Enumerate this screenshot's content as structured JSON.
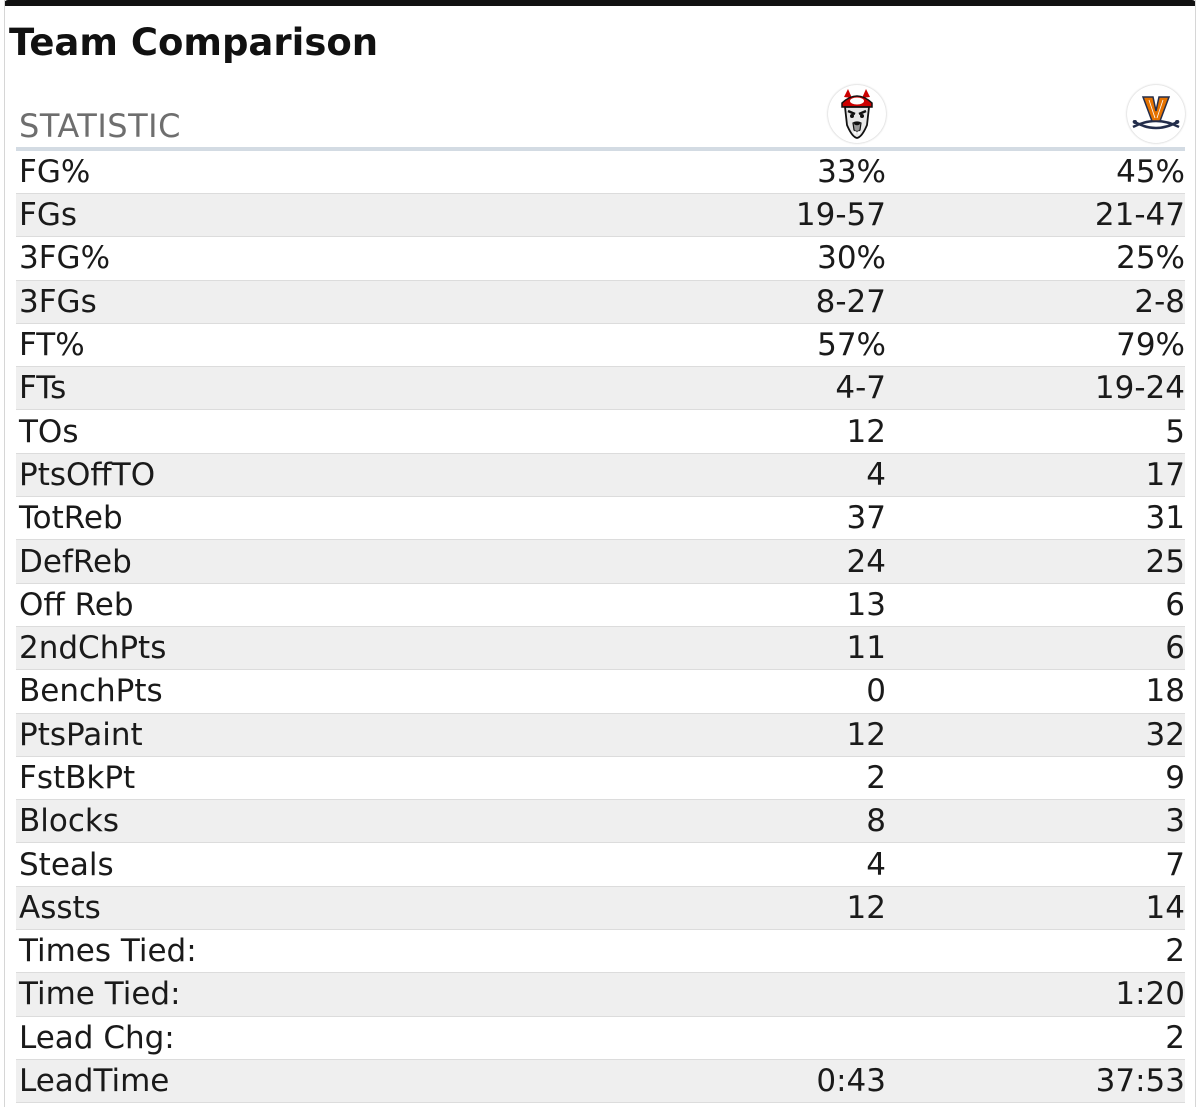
{
  "title": "Team Comparison",
  "header": {
    "statistic_label": "STATISTIC",
    "team1_logo": "nc-state-wolf-logo",
    "team2_logo": "virginia-cavaliers-logo"
  },
  "colors": {
    "team1_red": "#cc0000",
    "team2_orange": "#e57200",
    "team2_navy": "#232d4b"
  },
  "rows": [
    {
      "stat": "FG%",
      "team1": "33%",
      "team2": "45%"
    },
    {
      "stat": "FGs",
      "team1": "19-57",
      "team2": "21-47"
    },
    {
      "stat": "3FG%",
      "team1": "30%",
      "team2": "25%"
    },
    {
      "stat": "3FGs",
      "team1": "8-27",
      "team2": "2-8"
    },
    {
      "stat": "FT%",
      "team1": "57%",
      "team2": "79%"
    },
    {
      "stat": "FTs",
      "team1": "4-7",
      "team2": "19-24"
    },
    {
      "stat": "TOs",
      "team1": "12",
      "team2": "5"
    },
    {
      "stat": "PtsOffTO",
      "team1": "4",
      "team2": "17"
    },
    {
      "stat": "TotReb",
      "team1": "37",
      "team2": "31"
    },
    {
      "stat": "DefReb",
      "team1": "24",
      "team2": "25"
    },
    {
      "stat": "Off Reb",
      "team1": "13",
      "team2": "6"
    },
    {
      "stat": "2ndChPts",
      "team1": "11",
      "team2": "6"
    },
    {
      "stat": "BenchPts",
      "team1": "0",
      "team2": "18"
    },
    {
      "stat": "PtsPaint",
      "team1": "12",
      "team2": "32"
    },
    {
      "stat": "FstBkPt",
      "team1": "2",
      "team2": "9"
    },
    {
      "stat": "Blocks",
      "team1": "8",
      "team2": "3"
    },
    {
      "stat": "Steals",
      "team1": "4",
      "team2": "7"
    },
    {
      "stat": "Assts",
      "team1": "12",
      "team2": "14"
    },
    {
      "stat": "Times Tied:",
      "team1": "",
      "team2": "2"
    },
    {
      "stat": "Time Tied:",
      "team1": "",
      "team2": "1:20"
    },
    {
      "stat": "Lead Chg:",
      "team1": "",
      "team2": "2"
    },
    {
      "stat": "LeadTime",
      "team1": "0:43",
      "team2": "37:53"
    }
  ]
}
